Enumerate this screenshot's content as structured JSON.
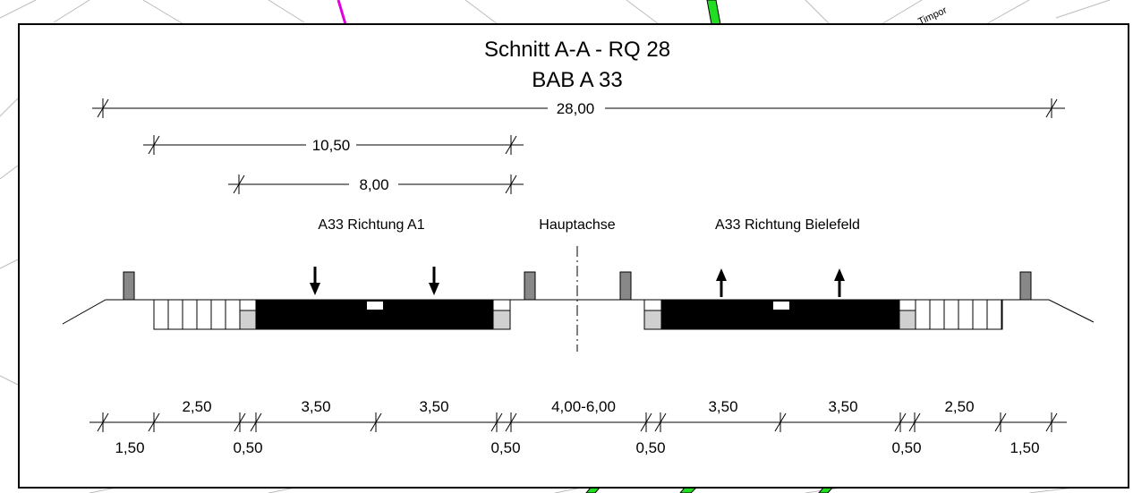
{
  "map_label": "Timpor",
  "title": {
    "line1": "Schnitt A-A - RQ 28",
    "line2": "BAB A 33"
  },
  "dimensions": {
    "total": "28,00",
    "upper": "10,50",
    "lower": "8,00"
  },
  "labels": {
    "left": "A33 Richtung A1",
    "center": "Hauptachse",
    "right": "A33 Richtung Bielefeld"
  },
  "bottom_dimensions": {
    "top_row": [
      "2,50",
      "3,50",
      "3,50",
      "4,00-6,00",
      "3,50",
      "3,50",
      "2,50"
    ],
    "bottom_row": [
      "1,50",
      "0,50",
      "0,50",
      "0,50",
      "0,50",
      "1,50"
    ]
  }
}
